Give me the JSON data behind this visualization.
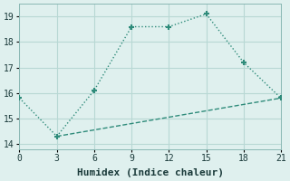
{
  "line1_x": [
    0,
    3,
    6,
    9,
    12,
    15,
    18,
    21
  ],
  "line1_y": [
    15.8,
    14.3,
    16.1,
    18.6,
    18.6,
    19.1,
    17.2,
    15.8
  ],
  "line2_x": [
    3,
    21
  ],
  "line2_y": [
    14.3,
    15.8
  ],
  "color": "#2e8b7a",
  "bg_color": "#dff0ee",
  "grid_color": "#b8d8d4",
  "xlabel": "Humidex (Indice chaleur)",
  "xlim": [
    0,
    21
  ],
  "ylim": [
    13.8,
    19.5
  ],
  "xticks": [
    0,
    3,
    6,
    9,
    12,
    15,
    18,
    21
  ],
  "yticks": [
    14,
    15,
    16,
    17,
    18,
    19
  ],
  "xlabel_fontsize": 8,
  "tick_fontsize": 7,
  "marker": "+",
  "markersize": 5,
  "linewidth": 1.0
}
